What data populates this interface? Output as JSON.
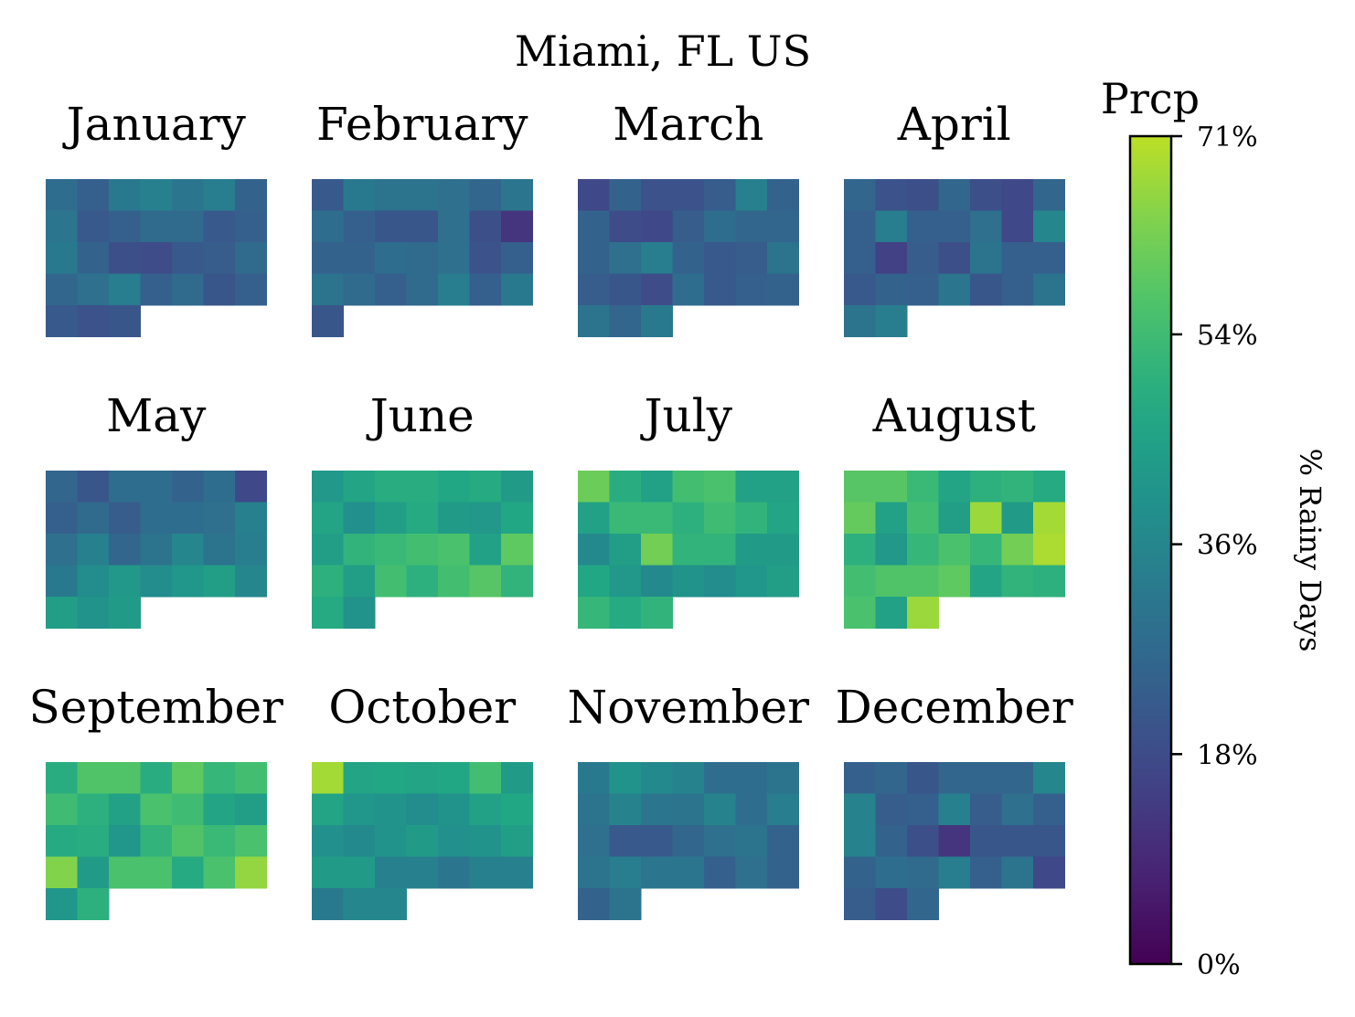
{
  "chart_data": {
    "type": "heatmap",
    "title": "Miami, FL US",
    "colorbar": {
      "title": "Prcp",
      "label": "% Rainy Days",
      "range": [
        0,
        71
      ],
      "ticks": [
        "0%",
        "18%",
        "36%",
        "54%",
        "71%"
      ],
      "tick_values": [
        0,
        18,
        36,
        54,
        71
      ],
      "colormap": "viridis"
    },
    "units": "% rainy days per calendar day (rows = weeks, columns = days of week)",
    "months": [
      {
        "name": "January",
        "values": [
          [
            28,
            24,
            32,
            34,
            31,
            33,
            25
          ],
          [
            31,
            22,
            24,
            27,
            27,
            22,
            24
          ],
          [
            32,
            25,
            19,
            18,
            22,
            23,
            27
          ],
          [
            26,
            29,
            33,
            24,
            27,
            21,
            24
          ],
          [
            22,
            20,
            21
          ]
        ]
      },
      {
        "name": "February",
        "values": [
          [
            22,
            32,
            30,
            30,
            29,
            26,
            31
          ],
          [
            28,
            24,
            21,
            21,
            29,
            19,
            12
          ],
          [
            25,
            25,
            28,
            27,
            29,
            20,
            24
          ],
          [
            30,
            27,
            24,
            27,
            33,
            24,
            32
          ],
          [
            21
          ]
        ]
      },
      {
        "name": "March",
        "values": [
          [
            17,
            25,
            20,
            20,
            23,
            34,
            25
          ],
          [
            25,
            18,
            17,
            23,
            28,
            26,
            26
          ],
          [
            25,
            29,
            33,
            25,
            22,
            23,
            30
          ],
          [
            23,
            21,
            18,
            28,
            22,
            24,
            25
          ],
          [
            30,
            26,
            32
          ]
        ]
      },
      {
        "name": "April",
        "values": [
          [
            26,
            20,
            19,
            26,
            19,
            17,
            26
          ],
          [
            24,
            33,
            24,
            24,
            29,
            17,
            36
          ],
          [
            24,
            15,
            23,
            19,
            30,
            24,
            24
          ],
          [
            22,
            25,
            24,
            31,
            21,
            24,
            30
          ],
          [
            30,
            33
          ]
        ]
      },
      {
        "name": "May",
        "values": [
          [
            26,
            21,
            28,
            28,
            25,
            28,
            17
          ],
          [
            24,
            27,
            23,
            28,
            28,
            29,
            34
          ],
          [
            29,
            34,
            26,
            30,
            36,
            30,
            33
          ],
          [
            32,
            38,
            42,
            38,
            41,
            44,
            36
          ],
          [
            44,
            40,
            43
          ]
        ]
      },
      {
        "name": "June",
        "values": [
          [
            42,
            46,
            49,
            49,
            47,
            48,
            43
          ],
          [
            46,
            39,
            44,
            48,
            43,
            42,
            47
          ],
          [
            44,
            51,
            53,
            55,
            56,
            45,
            59
          ],
          [
            50,
            44,
            55,
            50,
            55,
            58,
            51
          ],
          [
            48,
            40
          ]
        ]
      },
      {
        "name": "July",
        "values": [
          [
            61,
            49,
            45,
            55,
            56,
            45,
            45
          ],
          [
            45,
            53,
            53,
            50,
            54,
            51,
            46
          ],
          [
            37,
            44,
            62,
            51,
            51,
            43,
            43
          ],
          [
            47,
            42,
            37,
            40,
            38,
            41,
            44
          ],
          [
            52,
            48,
            51
          ]
        ]
      },
      {
        "name": "August",
        "values": [
          [
            58,
            58,
            53,
            46,
            50,
            51,
            48
          ],
          [
            60,
            45,
            55,
            44,
            67,
            43,
            68
          ],
          [
            50,
            42,
            52,
            56,
            52,
            62,
            69
          ],
          [
            55,
            57,
            57,
            59,
            46,
            51,
            50
          ],
          [
            56,
            45,
            67
          ]
        ]
      },
      {
        "name": "September",
        "values": [
          [
            49,
            57,
            57,
            49,
            59,
            52,
            55
          ],
          [
            54,
            50,
            45,
            56,
            54,
            46,
            44
          ],
          [
            48,
            49,
            41,
            51,
            57,
            53,
            56
          ],
          [
            64,
            43,
            56,
            56,
            48,
            56,
            66
          ],
          [
            41,
            50
          ]
        ]
      },
      {
        "name": "October",
        "values": [
          [
            68,
            46,
            47,
            46,
            47,
            55,
            43
          ],
          [
            46,
            41,
            40,
            38,
            40,
            45,
            47
          ],
          [
            39,
            37,
            40,
            43,
            39,
            40,
            44
          ],
          [
            43,
            43,
            34,
            34,
            31,
            34,
            34
          ],
          [
            32,
            36,
            36
          ]
        ]
      },
      {
        "name": "November",
        "values": [
          [
            32,
            40,
            37,
            35,
            28,
            28,
            30
          ],
          [
            30,
            35,
            31,
            30,
            35,
            28,
            33
          ],
          [
            29,
            22,
            22,
            26,
            29,
            30,
            25
          ],
          [
            30,
            33,
            31,
            31,
            24,
            29,
            25
          ],
          [
            25,
            30
          ]
        ]
      },
      {
        "name": "December",
        "values": [
          [
            24,
            26,
            21,
            26,
            26,
            26,
            36
          ],
          [
            35,
            23,
            24,
            34,
            23,
            29,
            24
          ],
          [
            35,
            25,
            19,
            12,
            21,
            21,
            21
          ],
          [
            25,
            28,
            27,
            33,
            24,
            30,
            17
          ],
          [
            23,
            18,
            26
          ]
        ]
      }
    ]
  }
}
